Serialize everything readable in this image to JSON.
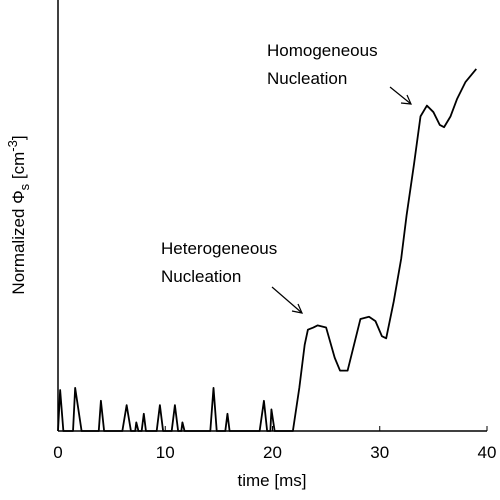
{
  "chart_data": {
    "type": "line",
    "xlabel": "time [ms]",
    "ylabel": [
      "Normalized Φ",
      "s",
      " [cm",
      "-3",
      "]"
    ],
    "annotations": [
      {
        "lines": [
          "Homogeneous",
          "Nucleation"
        ]
      },
      {
        "lines": [
          "Heterogeneous",
          "Nucleation"
        ]
      }
    ],
    "xlim": [
      0,
      40
    ],
    "xticks": [
      0,
      10,
      20,
      30,
      40
    ],
    "ylim": [
      0,
      100
    ],
    "grid": false,
    "color": "#000000",
    "x": [
      0,
      0.2,
      0.5,
      1.4,
      1.6,
      2.2,
      3.8,
      4,
      4.3,
      6,
      6.4,
      6.8,
      7.2,
      7.3,
      7.5,
      7.8,
      8,
      8.2,
      9.2,
      9.5,
      9.8,
      10.6,
      10.9,
      11.2,
      11.5,
      11.6,
      11.8,
      14.2,
      14.5,
      14.8,
      15.6,
      15.8,
      16,
      18.8,
      19.2,
      19.5,
      19.8,
      19.9,
      20.2,
      21.9,
      22.5,
      23,
      23.3,
      23.8,
      24.2,
      25,
      25.8,
      26.3,
      27,
      27.6,
      28.2,
      29,
      29.6,
      30.2,
      30.6,
      31.3,
      32,
      32.5,
      33.2,
      33.8,
      34.4,
      35,
      35.6,
      36,
      36.6,
      37.2,
      38,
      39
    ],
    "values": [
      0,
      9.5,
      0,
      0,
      10,
      0,
      0,
      7,
      0,
      0,
      6,
      0,
      0,
      2,
      0,
      0,
      4,
      0,
      0,
      6,
      0,
      0,
      6,
      0,
      0,
      2,
      0,
      0,
      10,
      0,
      0,
      4,
      0,
      0,
      7,
      0,
      0,
      5,
      0,
      0,
      10,
      20,
      23.5,
      24,
      24.5,
      24,
      17,
      14,
      14,
      20,
      26,
      26.5,
      25.5,
      22,
      21.5,
      30,
      40,
      50,
      62,
      73,
      75.5,
      74,
      71,
      70.5,
      73,
      77,
      81,
      84
    ]
  }
}
